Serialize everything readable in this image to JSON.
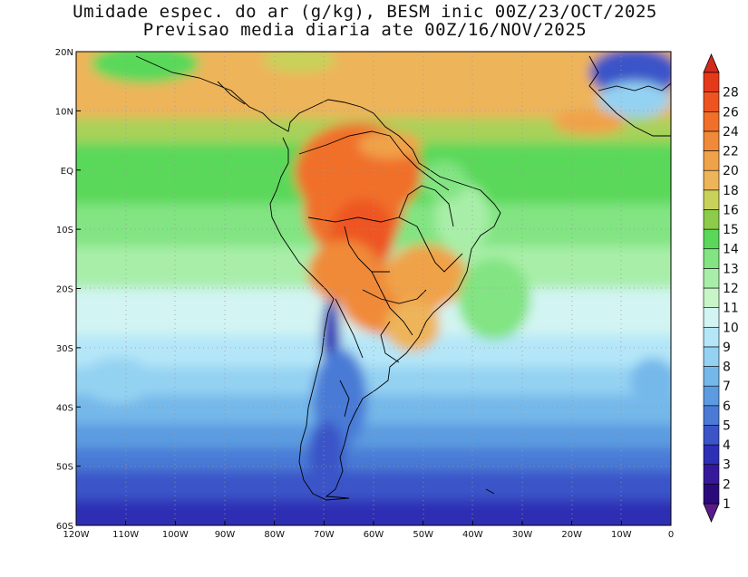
{
  "title": {
    "line1": "Umidade espec. do ar (g/kg), BESM inic 00Z/23/OCT/2025",
    "line2": "Previsao media diaria ate 00Z/16/NOV/2025"
  },
  "map": {
    "lon_range": [
      -120,
      0
    ],
    "lat_range": [
      -60,
      20
    ],
    "grid": "dotted",
    "lat_ticks": [
      {
        "value": 20,
        "label": "20N"
      },
      {
        "value": 10,
        "label": "10N"
      },
      {
        "value": 0,
        "label": "EQ"
      },
      {
        "value": -10,
        "label": "10S"
      },
      {
        "value": -20,
        "label": "20S"
      },
      {
        "value": -30,
        "label": "30S"
      },
      {
        "value": -40,
        "label": "40S"
      },
      {
        "value": -50,
        "label": "50S"
      },
      {
        "value": -60,
        "label": "60S"
      }
    ],
    "lon_ticks": [
      {
        "value": -120,
        "label": "120W"
      },
      {
        "value": -110,
        "label": "110W"
      },
      {
        "value": -100,
        "label": "100W"
      },
      {
        "value": -90,
        "label": "90W"
      },
      {
        "value": -80,
        "label": "80W"
      },
      {
        "value": -70,
        "label": "70W"
      },
      {
        "value": -60,
        "label": "60W"
      },
      {
        "value": -50,
        "label": "50W"
      },
      {
        "value": -40,
        "label": "40W"
      },
      {
        "value": -30,
        "label": "30W"
      },
      {
        "value": -20,
        "label": "20W"
      },
      {
        "value": -10,
        "label": "10W"
      },
      {
        "value": 0,
        "label": "0"
      }
    ]
  },
  "colorbar": {
    "levels": [
      {
        "label": "1",
        "color": "#2a0a7a"
      },
      {
        "label": "2",
        "color": "#35199a"
      },
      {
        "label": "3",
        "color": "#2d2fb4"
      },
      {
        "label": "4",
        "color": "#3b54c8"
      },
      {
        "label": "5",
        "color": "#4a7ad6"
      },
      {
        "label": "6",
        "color": "#5c9be0"
      },
      {
        "label": "7",
        "color": "#74b8ea"
      },
      {
        "label": "8",
        "color": "#94d2f2"
      },
      {
        "label": "9",
        "color": "#b4e6f8"
      },
      {
        "label": "10",
        "color": "#d2f4f2"
      },
      {
        "label": "11",
        "color": "#c8f5c8"
      },
      {
        "label": "12",
        "color": "#a8eea8"
      },
      {
        "label": "13",
        "color": "#82e482"
      },
      {
        "label": "14",
        "color": "#5ad85a"
      },
      {
        "label": "15",
        "color": "#8ccc4a"
      },
      {
        "label": "16",
        "color": "#c8d25a"
      },
      {
        "label": "18",
        "color": "#eeb45a"
      },
      {
        "label": "20",
        "color": "#f0a24a"
      },
      {
        "label": "22",
        "color": "#f08a38"
      },
      {
        "label": "24",
        "color": "#f0702a"
      },
      {
        "label": "26",
        "color": "#ee5420"
      },
      {
        "label": "28",
        "color": "#e43a1a"
      }
    ],
    "below_color": "#5a1a8a",
    "above_color": "#d42a1a"
  }
}
